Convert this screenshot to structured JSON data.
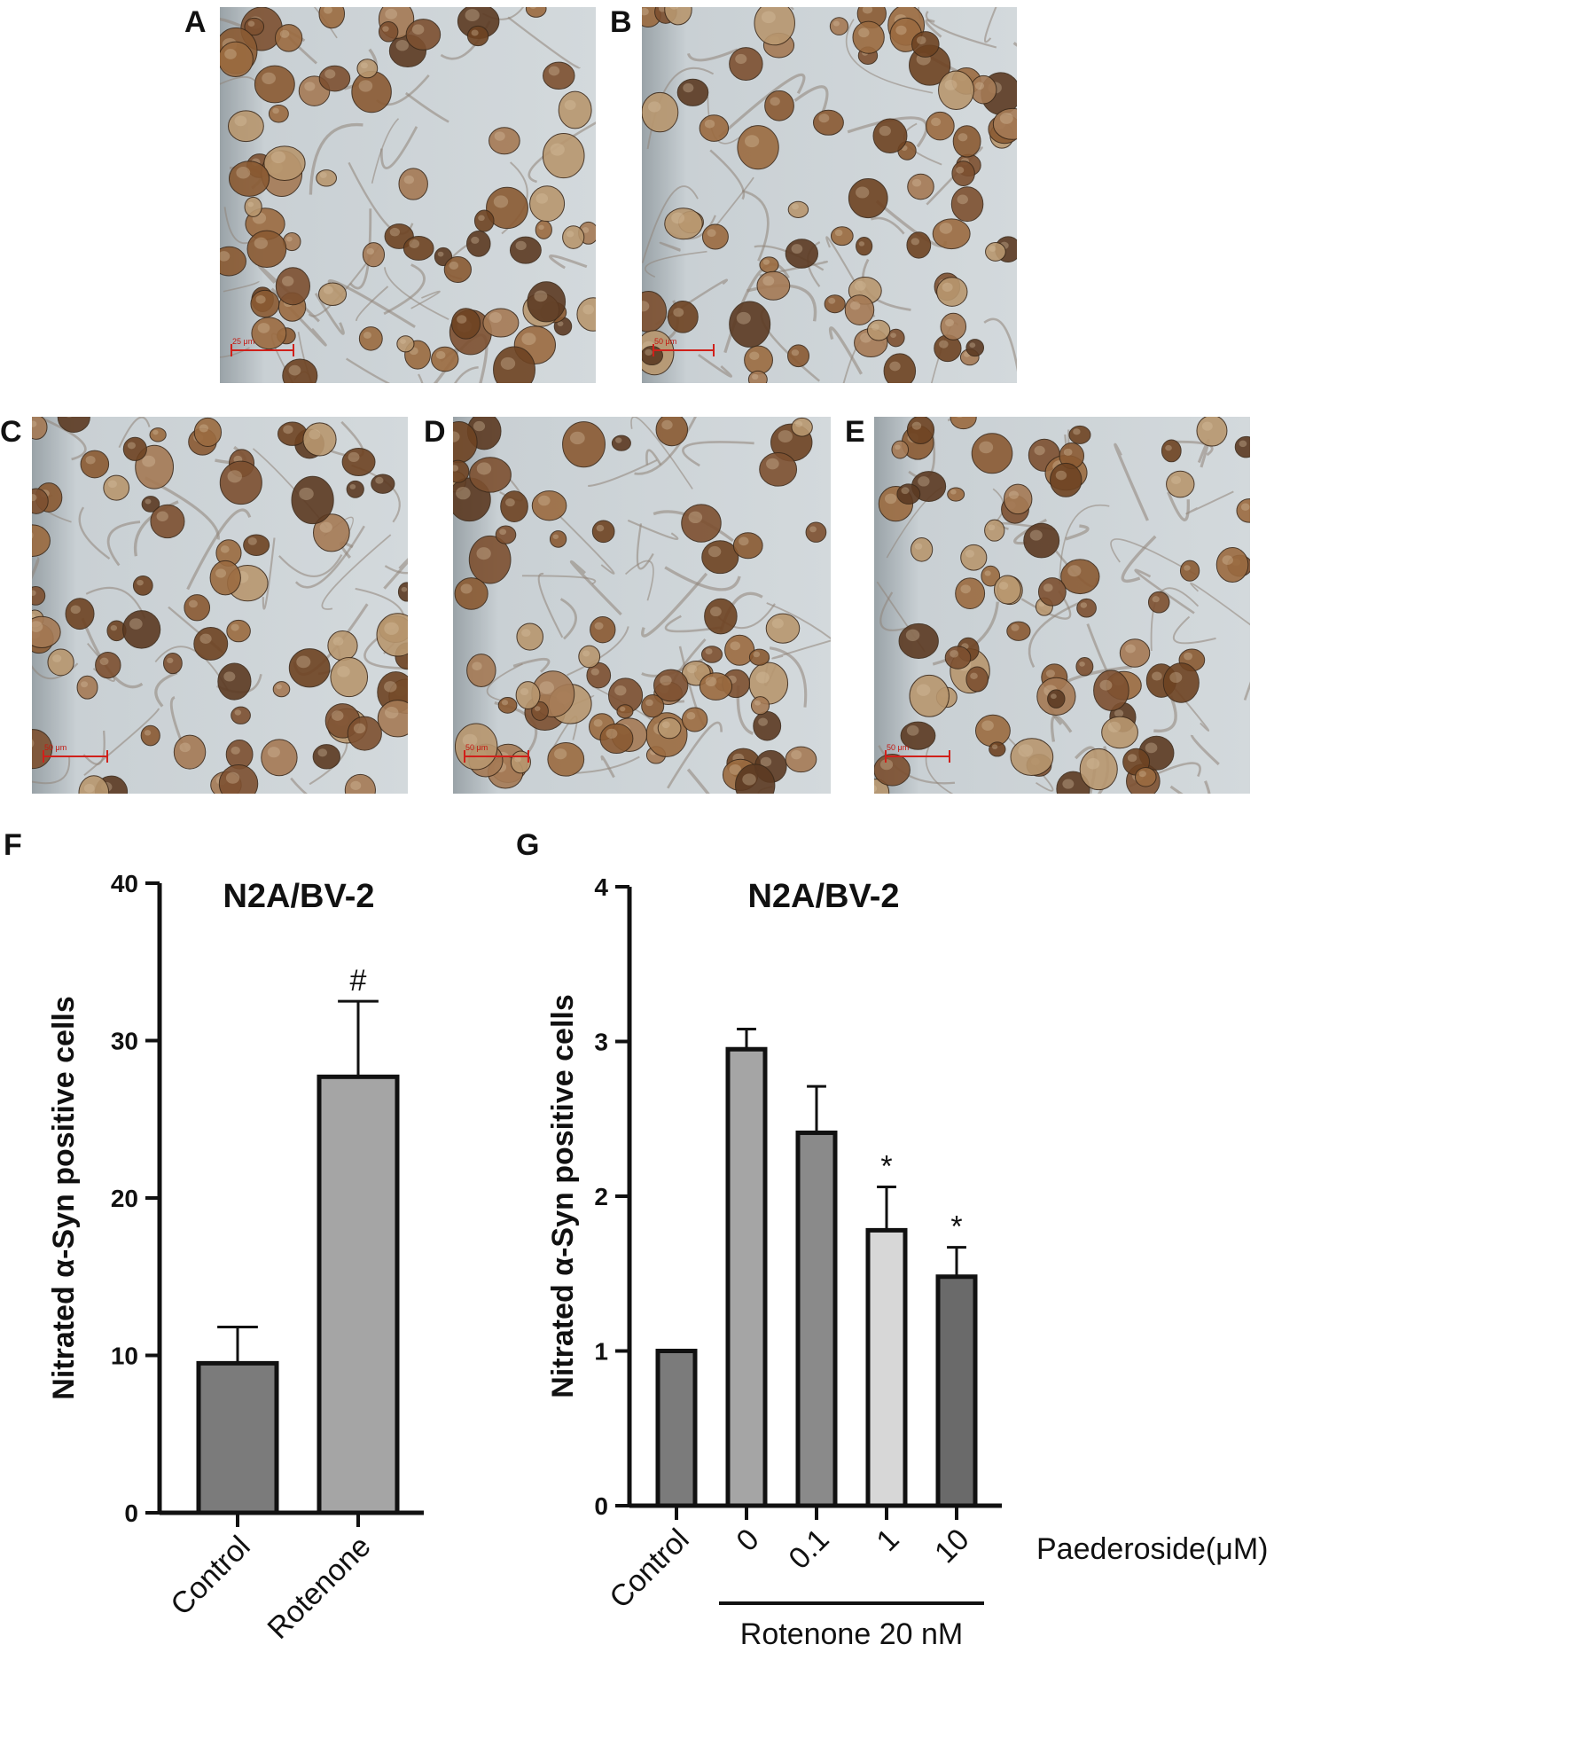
{
  "panels": {
    "A": {
      "letter": "A",
      "scale_label": "25 μm"
    },
    "B": {
      "letter": "B",
      "scale_label": "50 μm"
    },
    "C": {
      "letter": "C",
      "scale_label": "50 μm"
    },
    "D": {
      "letter": "D",
      "scale_label": "50 μm"
    },
    "E": {
      "letter": "E",
      "scale_label": "50 μm"
    },
    "F": {
      "letter": "F"
    },
    "G": {
      "letter": "G"
    }
  },
  "chart_data": [
    {
      "panel": "F",
      "type": "bar",
      "title": "N2A/BV-2",
      "ylabel": "Nitrated α-Syn positive cells",
      "xlabel": "",
      "categories": [
        "Control",
        "Rotenone"
      ],
      "values": [
        9.5,
        27.7
      ],
      "errors": [
        2.3,
        4.8
      ],
      "annotations": [
        "",
        "#"
      ],
      "bar_colors": [
        "#7b7b7b",
        "#a5a5a5"
      ],
      "ylim": [
        0,
        40
      ],
      "yticks": [
        0,
        10,
        20,
        30,
        40
      ]
    },
    {
      "panel": "G",
      "type": "bar",
      "title": "N2A/BV-2",
      "ylabel": "Nitrated α-Syn positive cells",
      "xlabel": "Paederoside(μM)",
      "categories": [
        "Control",
        "0",
        "0.1",
        "1",
        "10"
      ],
      "values": [
        1.0,
        2.95,
        2.41,
        1.78,
        1.48
      ],
      "errors": [
        0,
        0.13,
        0.3,
        0.28,
        0.19
      ],
      "annotations": [
        "",
        "",
        "",
        "*",
        "*"
      ],
      "bar_colors": [
        "#7b7b7b",
        "#a5a5a5",
        "#8a8a8a",
        "#d7d7d7",
        "#6a6a6a"
      ],
      "ylim": [
        0,
        4
      ],
      "yticks": [
        0,
        1,
        2,
        3,
        4
      ],
      "group_label": "Rotenone 20 nM"
    }
  ]
}
